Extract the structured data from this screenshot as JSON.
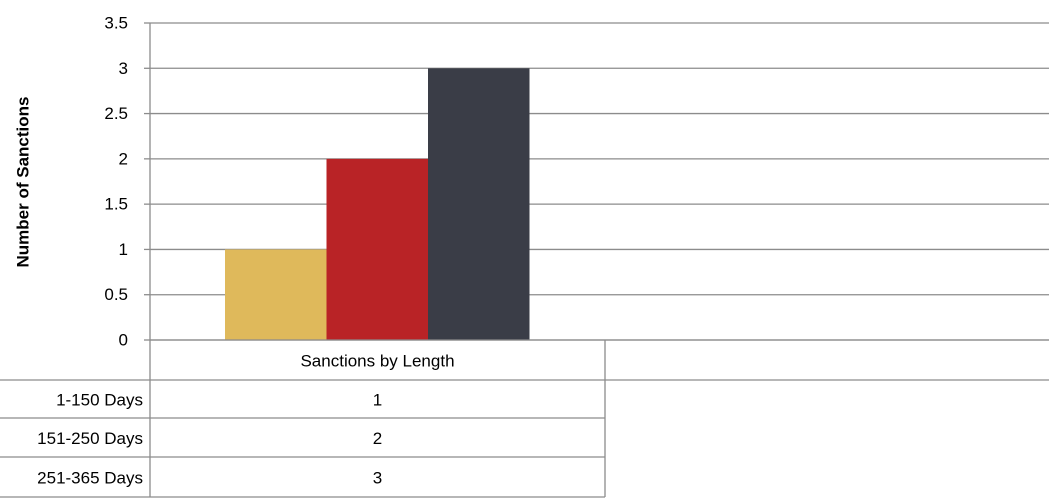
{
  "chart_data": {
    "type": "bar",
    "category": "Sanctions by Length",
    "series": [
      {
        "name": "1-150 Days",
        "values": [
          1
        ],
        "color": "#dfb95b"
      },
      {
        "name": "151-250 Days",
        "values": [
          2
        ],
        "color": "#b92326"
      },
      {
        "name": "251-365 Days",
        "values": [
          3
        ],
        "color": "#3a3d47"
      }
    ],
    "xlabel": "",
    "ylabel": "Number of Sanctions",
    "ylim": [
      0,
      3.5
    ],
    "yticks": [
      "0",
      "0.5",
      "1",
      "1.5",
      "2",
      "2.5",
      "3",
      "3.5"
    ],
    "grid": true,
    "legend": "data table below chart",
    "table": [
      {
        "label": "1-150 Days",
        "value": "1"
      },
      {
        "label": "151-250 Days",
        "value": "2"
      },
      {
        "label": "251-365 Days",
        "value": "3"
      }
    ]
  }
}
